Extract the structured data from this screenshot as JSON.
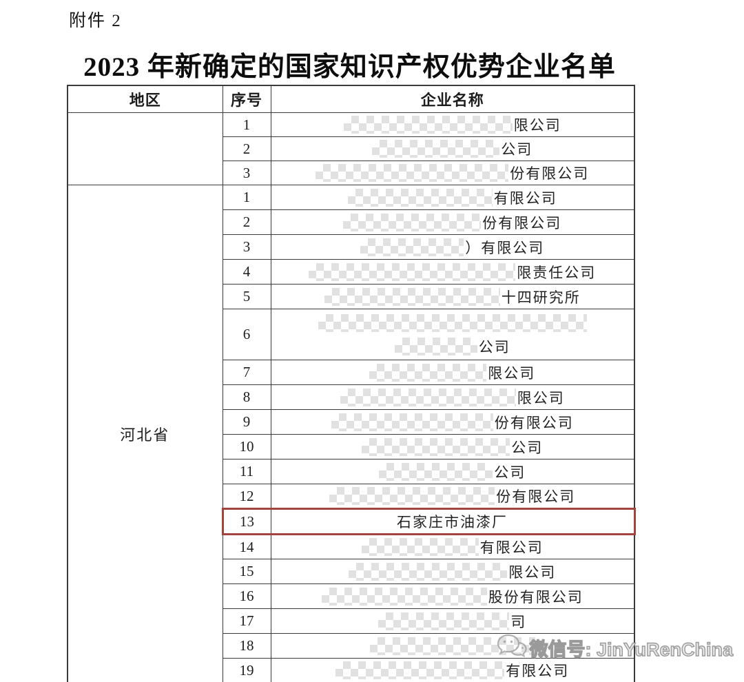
{
  "page": {
    "attachment_label": "附件 2",
    "title": "2023 年新确定的国家知识产权优势企业名单"
  },
  "table": {
    "columns": [
      "地区",
      "序号",
      "企业名称"
    ],
    "border_color": "#3a3a3a",
    "mask_color": "#dcdcdc",
    "highlight_color": "#a2443c",
    "sections": [
      {
        "region": "",
        "rows": [
          {
            "no": "1",
            "lines": [
              {
                "mask": 245,
                "suffix": "限公司"
              }
            ]
          },
          {
            "no": "2",
            "lines": [
              {
                "mask": 185,
                "suffix": "公司"
              }
            ]
          },
          {
            "no": "3",
            "lines": [
              {
                "mask": 280,
                "suffix": "份有限公司"
              }
            ]
          }
        ]
      },
      {
        "region": "河北省",
        "rows": [
          {
            "no": "1",
            "lines": [
              {
                "mask": 210,
                "suffix": "有限公司"
              }
            ]
          },
          {
            "no": "2",
            "lines": [
              {
                "mask": 200,
                "suffix": "份有限公司"
              }
            ]
          },
          {
            "no": "3",
            "lines": [
              {
                "mask": 150,
                "suffix": "）有限公司"
              }
            ]
          },
          {
            "no": "4",
            "lines": [
              {
                "mask": 300,
                "suffix": "限责任公司"
              }
            ]
          },
          {
            "no": "5",
            "lines": [
              {
                "mask": 255,
                "suffix": "十四研究所"
              }
            ]
          },
          {
            "no": "6",
            "tall": true,
            "lines": [
              {
                "mask": 390,
                "suffix": ""
              },
              {
                "mask": 120,
                "suffix": "公司"
              }
            ]
          },
          {
            "no": "7",
            "lines": [
              {
                "mask": 170,
                "suffix": "限公司"
              }
            ]
          },
          {
            "no": "8",
            "lines": [
              {
                "mask": 255,
                "suffix": "限公司"
              }
            ]
          },
          {
            "no": "9",
            "lines": [
              {
                "mask": 235,
                "suffix": "份有限公司"
              }
            ]
          },
          {
            "no": "10",
            "lines": [
              {
                "mask": 215,
                "suffix": "公司"
              }
            ]
          },
          {
            "no": "11",
            "lines": [
              {
                "mask": 165,
                "suffix": "公司"
              }
            ]
          },
          {
            "no": "12",
            "lines": [
              {
                "mask": 240,
                "suffix": "份有限公司"
              }
            ]
          },
          {
            "no": "13",
            "name": "石家庄市油漆厂",
            "highlight": true
          },
          {
            "no": "14",
            "lines": [
              {
                "mask": 170,
                "suffix": "有限公司"
              }
            ]
          },
          {
            "no": "15",
            "lines": [
              {
                "mask": 230,
                "suffix": "限公司"
              }
            ]
          },
          {
            "no": "16",
            "lines": [
              {
                "mask": 240,
                "suffix": "股份有限公司"
              }
            ]
          },
          {
            "no": "17",
            "lines": [
              {
                "mask": 190,
                "suffix": "司"
              }
            ]
          },
          {
            "no": "18",
            "lines": [
              {
                "mask": 240,
                "suffix": ""
              }
            ]
          },
          {
            "no": "19",
            "lines": [
              {
                "mask": 245,
                "suffix": "有限公司"
              }
            ]
          }
        ]
      }
    ]
  },
  "watermark": {
    "text": "微信号: JinYuRenChina",
    "icon": "wechat-icon",
    "color": "#9a9a9a"
  }
}
